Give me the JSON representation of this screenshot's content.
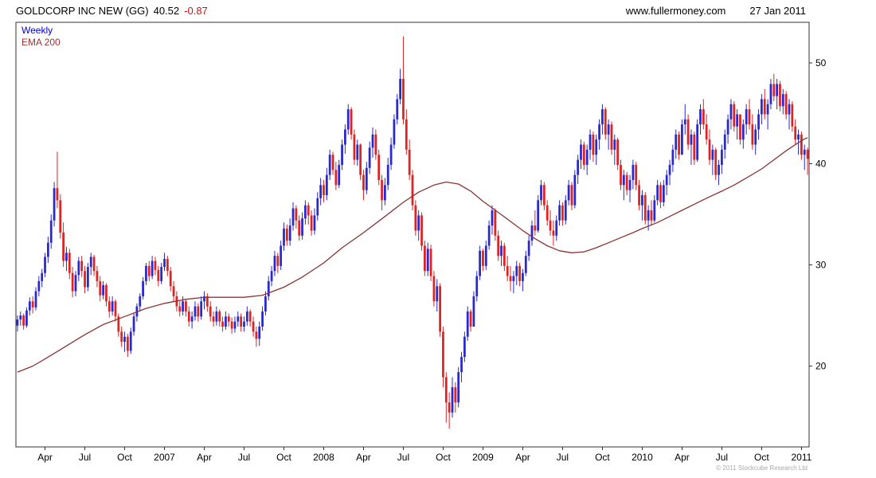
{
  "header": {
    "title": "GOLDCORP INC NEW (GG)",
    "last_price": "40.52",
    "change": "-0.87",
    "website": "www.fullermoney.com",
    "date": "27 Jan 2011"
  },
  "legend": {
    "weekly": "Weekly",
    "ema": "EMA 200"
  },
  "footer": {
    "copyright": "© 2011 Stockcube Research Ltd"
  },
  "colors": {
    "up": "#2929cc",
    "down": "#dc2424",
    "ema": "#8a3333",
    "axis": "#333333",
    "legend_weekly": "#0000cc",
    "legend_ema": "#a03333"
  },
  "chart_data": {
    "type": "candlestick",
    "timeframe": "weekly",
    "instrument": "GOLDCORP INC NEW (GG)",
    "last_price": 40.52,
    "change": -0.87,
    "as_of": "27 Jan 2011",
    "grid": false,
    "legend": [
      "Weekly",
      "EMA 200"
    ],
    "legend_position": "top-left",
    "ylim": [
      12,
      54
    ],
    "y_ticks": [
      {
        "value": 20,
        "label": "20"
      },
      {
        "value": 30,
        "label": "30"
      },
      {
        "value": 40,
        "label": "40"
      },
      {
        "value": 50,
        "label": "50"
      }
    ],
    "x_ticks": [
      {
        "week": 9,
        "label": "Apr"
      },
      {
        "week": 22,
        "label": "Jul"
      },
      {
        "week": 35,
        "label": "Oct"
      },
      {
        "week": 48,
        "label": "2007"
      },
      {
        "week": 61,
        "label": "Apr"
      },
      {
        "week": 74,
        "label": "Jul"
      },
      {
        "week": 87,
        "label": "Oct"
      },
      {
        "week": 100,
        "label": "2008"
      },
      {
        "week": 113,
        "label": "Apr"
      },
      {
        "week": 126,
        "label": "Jul"
      },
      {
        "week": 139,
        "label": "Oct"
      },
      {
        "week": 152,
        "label": "2009"
      },
      {
        "week": 165,
        "label": "Apr"
      },
      {
        "week": 178,
        "label": "Jul"
      },
      {
        "week": 191,
        "label": "Oct"
      },
      {
        "week": 204,
        "label": "2010"
      },
      {
        "week": 217,
        "label": "Apr"
      },
      {
        "week": 230,
        "label": "Jul"
      },
      {
        "week": 243,
        "label": "Oct"
      },
      {
        "week": 256,
        "label": "2011"
      }
    ],
    "first_open": 24.0,
    "candles_hlc": [
      [
        25.0,
        23.4,
        24.6
      ],
      [
        25.4,
        24.0,
        25.0
      ],
      [
        25.2,
        23.6,
        24.0
      ],
      [
        25.8,
        23.8,
        25.5
      ],
      [
        26.8,
        25.0,
        26.4
      ],
      [
        26.9,
        25.2,
        25.8
      ],
      [
        27.8,
        25.5,
        27.4
      ],
      [
        28.9,
        26.9,
        28.4
      ],
      [
        29.6,
        27.8,
        29.2
      ],
      [
        31.2,
        28.8,
        30.8
      ],
      [
        32.8,
        30.2,
        32.2
      ],
      [
        35.0,
        31.6,
        34.4
      ],
      [
        38.2,
        33.8,
        37.6
      ],
      [
        41.2,
        35.6,
        36.4
      ],
      [
        37.0,
        32.6,
        33.2
      ],
      [
        34.2,
        29.8,
        30.4
      ],
      [
        31.8,
        29.4,
        31.2
      ],
      [
        31.6,
        28.6,
        29.2
      ],
      [
        29.8,
        26.8,
        27.4
      ],
      [
        29.4,
        26.9,
        29.0
      ],
      [
        30.8,
        28.4,
        30.4
      ],
      [
        30.9,
        28.8,
        29.4
      ],
      [
        29.9,
        27.2,
        27.8
      ],
      [
        30.2,
        27.4,
        29.8
      ],
      [
        31.2,
        29.0,
        30.8
      ],
      [
        31.0,
        28.9,
        29.4
      ],
      [
        29.9,
        27.8,
        28.4
      ],
      [
        28.9,
        26.4,
        27.0
      ],
      [
        28.4,
        26.6,
        28.0
      ],
      [
        28.2,
        25.9,
        26.4
      ],
      [
        26.9,
        24.8,
        25.4
      ],
      [
        26.9,
        25.0,
        26.4
      ],
      [
        26.6,
        24.4,
        24.9
      ],
      [
        25.2,
        22.9,
        23.4
      ],
      [
        23.9,
        21.9,
        22.4
      ],
      [
        23.4,
        21.4,
        22.9
      ],
      [
        23.2,
        20.9,
        21.5
      ],
      [
        23.8,
        21.2,
        23.4
      ],
      [
        25.2,
        23.0,
        24.9
      ],
      [
        26.2,
        24.4,
        25.9
      ],
      [
        27.2,
        25.4,
        26.9
      ],
      [
        28.8,
        26.6,
        28.4
      ],
      [
        30.2,
        28.0,
        29.9
      ],
      [
        30.4,
        28.4,
        28.9
      ],
      [
        30.9,
        28.6,
        30.4
      ],
      [
        30.8,
        29.0,
        29.5
      ],
      [
        29.9,
        27.9,
        28.4
      ],
      [
        30.2,
        28.1,
        29.8
      ],
      [
        31.2,
        29.4,
        30.6
      ],
      [
        30.9,
        28.9,
        29.4
      ],
      [
        29.8,
        27.4,
        27.9
      ],
      [
        28.4,
        26.4,
        26.9
      ],
      [
        27.4,
        25.4,
        25.9
      ],
      [
        26.4,
        24.9,
        25.4
      ],
      [
        26.9,
        25.0,
        26.4
      ],
      [
        26.6,
        24.9,
        25.4
      ],
      [
        25.9,
        23.9,
        24.4
      ],
      [
        25.4,
        23.7,
        24.9
      ],
      [
        26.4,
        24.5,
        25.9
      ],
      [
        26.2,
        24.4,
        24.9
      ],
      [
        26.9,
        24.6,
        26.4
      ],
      [
        27.4,
        25.6,
        26.9
      ],
      [
        27.2,
        25.4,
        25.9
      ],
      [
        26.4,
        24.4,
        24.9
      ],
      [
        25.4,
        23.9,
        24.4
      ],
      [
        25.9,
        24.0,
        25.4
      ],
      [
        25.6,
        23.9,
        24.4
      ],
      [
        24.9,
        23.4,
        23.9
      ],
      [
        25.4,
        23.6,
        24.9
      ],
      [
        25.2,
        23.9,
        24.4
      ],
      [
        24.8,
        23.2,
        23.7
      ],
      [
        24.9,
        23.3,
        24.4
      ],
      [
        25.4,
        23.9,
        24.9
      ],
      [
        25.2,
        23.4,
        23.9
      ],
      [
        24.9,
        23.4,
        24.4
      ],
      [
        25.9,
        24.0,
        25.4
      ],
      [
        25.6,
        23.9,
        24.4
      ],
      [
        24.9,
        22.9,
        23.4
      ],
      [
        23.9,
        21.9,
        22.7
      ],
      [
        24.4,
        22.0,
        23.9
      ],
      [
        25.9,
        23.5,
        25.4
      ],
      [
        27.4,
        25.0,
        26.9
      ],
      [
        28.9,
        26.5,
        28.4
      ],
      [
        29.9,
        27.9,
        29.4
      ],
      [
        31.4,
        28.9,
        30.9
      ],
      [
        31.2,
        29.2,
        29.9
      ],
      [
        32.4,
        29.5,
        31.9
      ],
      [
        34.2,
        31.4,
        33.6
      ],
      [
        34.0,
        31.9,
        32.4
      ],
      [
        34.6,
        31.9,
        33.9
      ],
      [
        36.2,
        33.4,
        35.6
      ],
      [
        35.9,
        33.6,
        34.4
      ],
      [
        34.9,
        32.4,
        32.9
      ],
      [
        35.2,
        32.5,
        34.6
      ],
      [
        36.4,
        34.0,
        35.9
      ],
      [
        36.2,
        34.0,
        34.9
      ],
      [
        35.4,
        32.9,
        33.4
      ],
      [
        35.6,
        33.0,
        34.9
      ],
      [
        37.2,
        34.4,
        36.6
      ],
      [
        38.6,
        35.9,
        37.9
      ],
      [
        38.4,
        36.2,
        36.9
      ],
      [
        39.6,
        36.4,
        38.9
      ],
      [
        41.4,
        38.4,
        40.9
      ],
      [
        41.2,
        38.9,
        39.4
      ],
      [
        40.2,
        37.4,
        37.9
      ],
      [
        40.4,
        37.6,
        39.9
      ],
      [
        42.4,
        39.4,
        41.9
      ],
      [
        43.9,
        41.0,
        43.4
      ],
      [
        45.9,
        42.9,
        45.4
      ],
      [
        45.6,
        42.4,
        42.9
      ],
      [
        43.4,
        39.9,
        40.4
      ],
      [
        42.4,
        39.8,
        41.9
      ],
      [
        42.0,
        38.4,
        38.9
      ],
      [
        39.4,
        36.4,
        37.4
      ],
      [
        40.2,
        37.0,
        39.6
      ],
      [
        42.2,
        39.0,
        41.6
      ],
      [
        43.6,
        40.6,
        42.9
      ],
      [
        43.4,
        40.4,
        40.9
      ],
      [
        41.4,
        37.9,
        38.4
      ],
      [
        38.9,
        35.4,
        36.4
      ],
      [
        38.6,
        35.9,
        37.9
      ],
      [
        40.6,
        37.4,
        39.9
      ],
      [
        42.6,
        39.4,
        41.9
      ],
      [
        44.9,
        41.5,
        44.4
      ],
      [
        46.9,
        43.9,
        46.4
      ],
      [
        49.4,
        45.9,
        48.4
      ],
      [
        52.6,
        43.9,
        44.4
      ],
      [
        45.4,
        40.9,
        41.4
      ],
      [
        42.4,
        38.4,
        38.9
      ],
      [
        39.4,
        35.4,
        35.9
      ],
      [
        36.4,
        32.9,
        33.4
      ],
      [
        35.4,
        32.4,
        34.9
      ],
      [
        35.2,
        31.4,
        31.9
      ],
      [
        32.4,
        28.9,
        29.4
      ],
      [
        32.2,
        28.9,
        31.6
      ],
      [
        32.0,
        28.4,
        28.9
      ],
      [
        29.4,
        25.9,
        26.4
      ],
      [
        28.6,
        25.4,
        27.9
      ],
      [
        28.2,
        22.9,
        23.4
      ],
      [
        23.9,
        17.9,
        18.9
      ],
      [
        19.4,
        14.4,
        16.4
      ],
      [
        17.4,
        13.8,
        15.4
      ],
      [
        18.9,
        14.9,
        17.9
      ],
      [
        18.4,
        15.4,
        16.4
      ],
      [
        19.9,
        15.9,
        19.4
      ],
      [
        21.4,
        18.4,
        20.9
      ],
      [
        23.4,
        20.4,
        22.9
      ],
      [
        25.9,
        22.5,
        25.4
      ],
      [
        25.6,
        23.4,
        23.9
      ],
      [
        27.4,
        23.9,
        26.9
      ],
      [
        29.4,
        26.4,
        28.9
      ],
      [
        31.9,
        28.5,
        31.4
      ],
      [
        31.6,
        29.4,
        29.9
      ],
      [
        32.4,
        29.5,
        31.9
      ],
      [
        34.4,
        31.5,
        33.9
      ],
      [
        35.9,
        33.0,
        35.4
      ],
      [
        35.6,
        32.4,
        32.9
      ],
      [
        33.4,
        30.4,
        30.9
      ],
      [
        32.4,
        29.9,
        31.9
      ],
      [
        32.2,
        29.4,
        29.9
      ],
      [
        30.9,
        28.4,
        28.9
      ],
      [
        29.9,
        27.4,
        28.4
      ],
      [
        29.4,
        27.2,
        28.9
      ],
      [
        30.4,
        28.0,
        29.9
      ],
      [
        30.2,
        27.9,
        28.4
      ],
      [
        29.6,
        27.4,
        29.2
      ],
      [
        31.4,
        28.9,
        30.9
      ],
      [
        32.9,
        30.4,
        32.4
      ],
      [
        34.4,
        31.9,
        33.9
      ],
      [
        35.4,
        32.9,
        33.4
      ],
      [
        36.9,
        33.2,
        36.4
      ],
      [
        38.4,
        35.9,
        37.9
      ],
      [
        38.2,
        35.4,
        35.9
      ],
      [
        36.4,
        33.9,
        34.4
      ],
      [
        35.4,
        32.9,
        33.4
      ],
      [
        34.4,
        31.9,
        32.9
      ],
      [
        34.9,
        32.4,
        34.4
      ],
      [
        36.4,
        33.9,
        35.9
      ],
      [
        36.2,
        33.9,
        34.4
      ],
      [
        36.9,
        34.0,
        36.4
      ],
      [
        38.4,
        35.9,
        37.9
      ],
      [
        38.2,
        35.4,
        35.9
      ],
      [
        39.4,
        35.6,
        38.9
      ],
      [
        40.9,
        38.0,
        40.4
      ],
      [
        42.4,
        39.5,
        41.9
      ],
      [
        42.2,
        39.4,
        39.9
      ],
      [
        41.9,
        38.9,
        41.4
      ],
      [
        43.4,
        40.4,
        42.9
      ],
      [
        43.2,
        40.2,
        40.9
      ],
      [
        42.9,
        39.9,
        42.4
      ],
      [
        44.4,
        41.4,
        43.9
      ],
      [
        45.9,
        42.9,
        45.4
      ],
      [
        45.6,
        42.4,
        42.9
      ],
      [
        44.4,
        41.4,
        43.9
      ],
      [
        44.2,
        40.9,
        41.4
      ],
      [
        42.9,
        39.9,
        42.4
      ],
      [
        42.6,
        39.4,
        39.9
      ],
      [
        40.4,
        37.4,
        37.9
      ],
      [
        39.4,
        36.4,
        38.9
      ],
      [
        39.2,
        36.9,
        37.4
      ],
      [
        38.9,
        36.2,
        38.4
      ],
      [
        40.4,
        37.5,
        39.9
      ],
      [
        40.2,
        37.4,
        37.9
      ],
      [
        38.4,
        35.4,
        35.9
      ],
      [
        37.4,
        34.4,
        36.9
      ],
      [
        37.2,
        34.0,
        34.4
      ],
      [
        35.9,
        33.4,
        35.4
      ],
      [
        36.4,
        33.9,
        34.4
      ],
      [
        36.9,
        34.2,
        36.4
      ],
      [
        38.4,
        35.9,
        37.9
      ],
      [
        38.2,
        35.6,
        36.2
      ],
      [
        38.4,
        35.8,
        37.9
      ],
      [
        39.4,
        36.9,
        38.9
      ],
      [
        40.4,
        37.9,
        39.9
      ],
      [
        41.9,
        39.2,
        41.4
      ],
      [
        43.4,
        40.5,
        42.9
      ],
      [
        43.2,
        40.4,
        40.9
      ],
      [
        44.4,
        40.9,
        43.9
      ],
      [
        45.9,
        42.9,
        44.4
      ],
      [
        44.9,
        41.4,
        41.9
      ],
      [
        43.4,
        39.9,
        42.9
      ],
      [
        43.2,
        39.9,
        40.4
      ],
      [
        44.4,
        40.2,
        43.9
      ],
      [
        45.9,
        42.9,
        45.4
      ],
      [
        46.4,
        43.4,
        43.9
      ],
      [
        44.9,
        41.9,
        42.4
      ],
      [
        43.4,
        39.9,
        40.4
      ],
      [
        41.9,
        38.9,
        41.4
      ],
      [
        41.6,
        38.4,
        38.9
      ],
      [
        40.4,
        37.9,
        39.9
      ],
      [
        41.9,
        39.0,
        41.4
      ],
      [
        43.4,
        40.5,
        42.9
      ],
      [
        44.9,
        42.0,
        44.4
      ],
      [
        46.4,
        43.4,
        45.9
      ],
      [
        46.2,
        43.2,
        43.7
      ],
      [
        45.4,
        42.4,
        44.9
      ],
      [
        44.9,
        41.9,
        42.4
      ],
      [
        44.4,
        41.5,
        43.9
      ],
      [
        45.9,
        42.9,
        45.4
      ],
      [
        46.4,
        43.4,
        43.9
      ],
      [
        44.9,
        41.4,
        41.9
      ],
      [
        43.9,
        40.9,
        43.4
      ],
      [
        45.4,
        42.4,
        44.9
      ],
      [
        46.9,
        43.9,
        46.4
      ],
      [
        47.4,
        44.4,
        44.9
      ],
      [
        46.4,
        43.4,
        45.9
      ],
      [
        48.4,
        45.4,
        47.9
      ],
      [
        48.9,
        46.2,
        46.7
      ],
      [
        48.4,
        45.4,
        47.9
      ],
      [
        48.2,
        45.2,
        45.7
      ],
      [
        47.4,
        44.9,
        46.9
      ],
      [
        47.2,
        44.4,
        44.9
      ],
      [
        46.4,
        43.4,
        45.9
      ],
      [
        46.2,
        43.2,
        43.7
      ],
      [
        44.4,
        41.9,
        42.4
      ],
      [
        43.4,
        40.9,
        42.9
      ],
      [
        43.2,
        40.4,
        40.9
      ],
      [
        41.9,
        39.4,
        41.4
      ],
      [
        41.6,
        38.9,
        40.5
      ]
    ],
    "ema_label": "EMA 200",
    "ema_anchors": [
      [
        0,
        19.4
      ],
      [
        5,
        20.0
      ],
      [
        9,
        20.7
      ],
      [
        15,
        21.8
      ],
      [
        22,
        23.1
      ],
      [
        28,
        24.1
      ],
      [
        35,
        24.9
      ],
      [
        42,
        25.7
      ],
      [
        48,
        26.2
      ],
      [
        55,
        26.6
      ],
      [
        61,
        26.8
      ],
      [
        68,
        26.8
      ],
      [
        74,
        26.8
      ],
      [
        80,
        27.0
      ],
      [
        87,
        27.8
      ],
      [
        93,
        28.8
      ],
      [
        100,
        30.2
      ],
      [
        106,
        31.7
      ],
      [
        113,
        33.2
      ],
      [
        120,
        34.8
      ],
      [
        126,
        36.2
      ],
      [
        131,
        37.2
      ],
      [
        136,
        37.9
      ],
      [
        140,
        38.2
      ],
      [
        144,
        38.0
      ],
      [
        148,
        37.3
      ],
      [
        152,
        36.3
      ],
      [
        157,
        35.2
      ],
      [
        161,
        34.3
      ],
      [
        165,
        33.4
      ],
      [
        169,
        32.6
      ],
      [
        173,
        31.9
      ],
      [
        177,
        31.4
      ],
      [
        181,
        31.2
      ],
      [
        185,
        31.3
      ],
      [
        189,
        31.7
      ],
      [
        193,
        32.2
      ],
      [
        197,
        32.7
      ],
      [
        201,
        33.2
      ],
      [
        204,
        33.6
      ],
      [
        209,
        34.2
      ],
      [
        213,
        34.8
      ],
      [
        217,
        35.4
      ],
      [
        221,
        36.0
      ],
      [
        225,
        36.6
      ],
      [
        230,
        37.3
      ],
      [
        234,
        37.9
      ],
      [
        238,
        38.6
      ],
      [
        243,
        39.5
      ],
      [
        247,
        40.4
      ],
      [
        251,
        41.3
      ],
      [
        254,
        41.9
      ],
      [
        256,
        42.3
      ],
      [
        258,
        42.6
      ]
    ]
  }
}
